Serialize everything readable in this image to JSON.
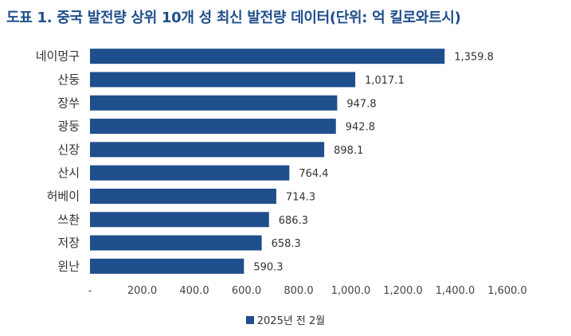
{
  "title": "도표 1. 중국 발전량 상위 10개 성 최신 발전량 데이터(단위: 억 킬로와트시)",
  "colors": {
    "bar": "#1f4e8c",
    "title": "#1f4e8c"
  },
  "chart_data": {
    "type": "bar",
    "orientation": "horizontal",
    "categories": [
      "네이멍구",
      "산둥",
      "장쑤",
      "광둥",
      "신장",
      "산시",
      "허베이",
      "쓰촨",
      "저장",
      "윈난"
    ],
    "series": [
      {
        "name": "2025년 전 2월",
        "values": [
          1359.8,
          1017.1,
          947.8,
          942.8,
          898.1,
          764.4,
          714.3,
          686.3,
          658.3,
          590.3
        ]
      }
    ],
    "value_labels": [
      "1,359.8",
      "1,017.1",
      "947.8",
      "942.8",
      "898.1",
      "764.4",
      "714.3",
      "686.3",
      "658.3",
      "590.3"
    ],
    "xlim": [
      0,
      1600
    ],
    "x_ticks": [
      0,
      200,
      400,
      600,
      800,
      1000,
      1200,
      1400,
      1600
    ],
    "x_tick_labels": [
      "-",
      "200.0",
      "400.0",
      "600.0",
      "800.0",
      "1,000.0",
      "1,200.0",
      "1,400.0",
      "1,600.0"
    ],
    "grid": false,
    "legend_position": "bottom"
  }
}
